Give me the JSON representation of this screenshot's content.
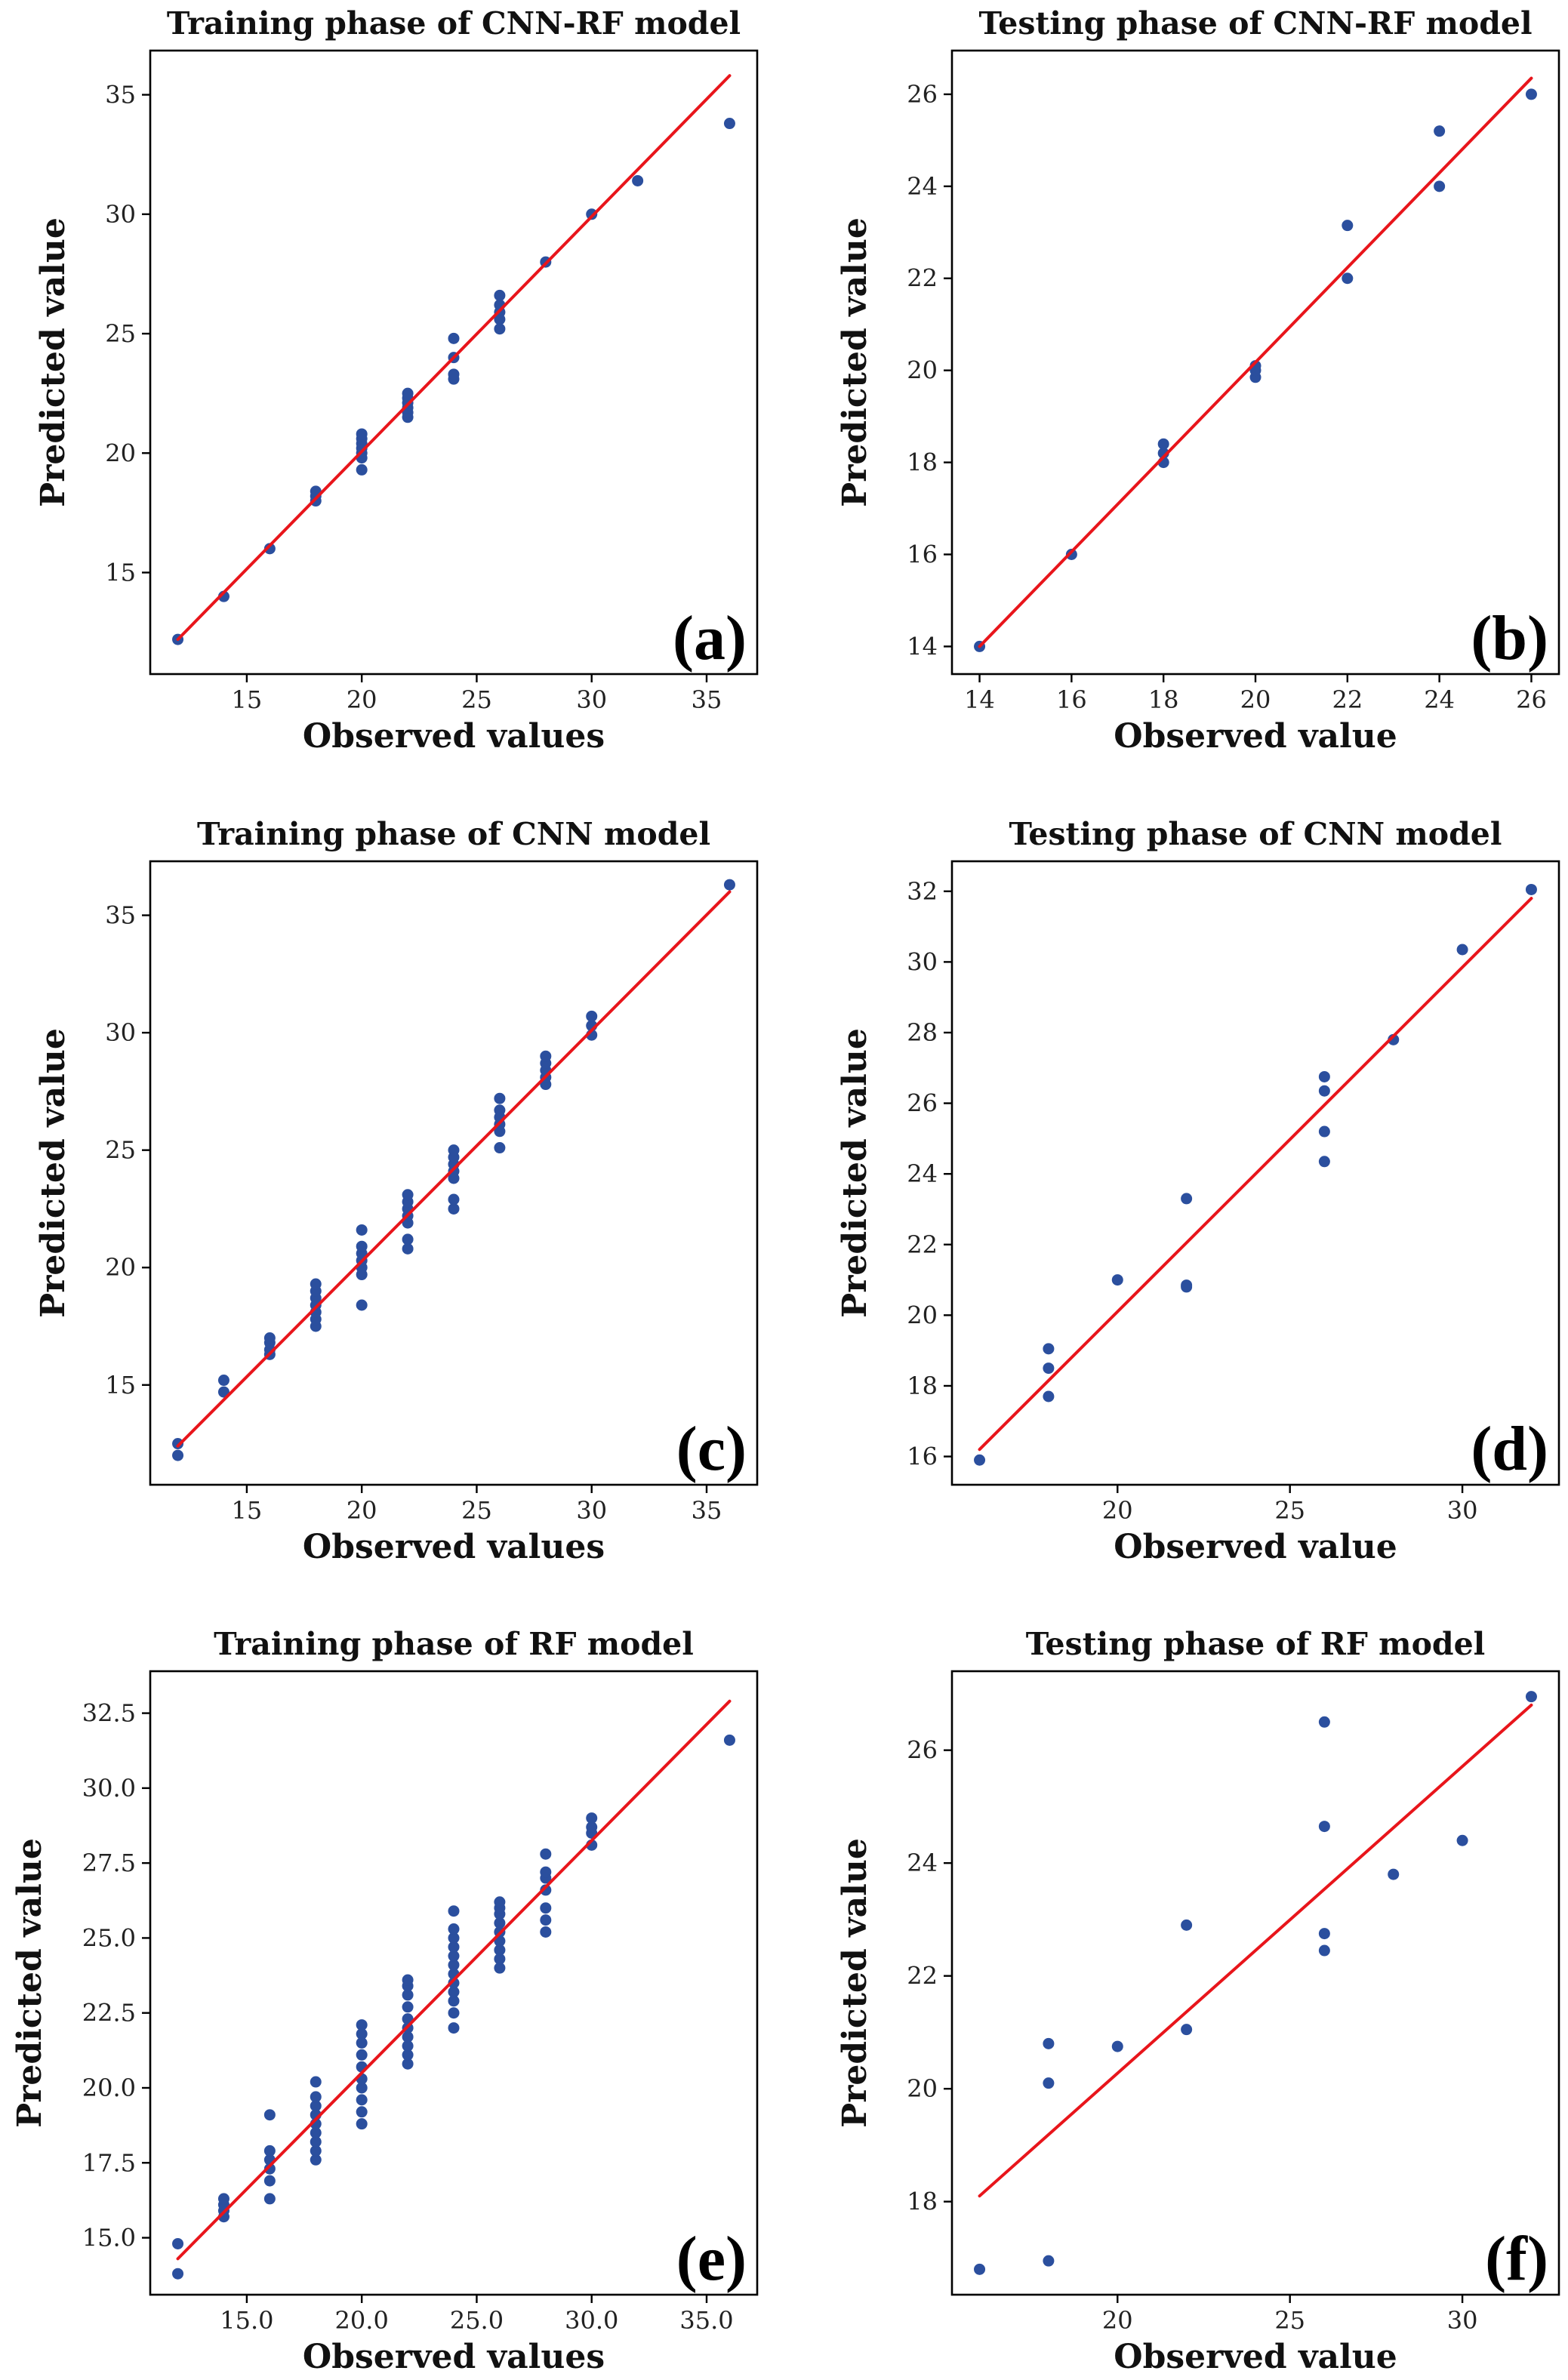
{
  "colors": {
    "points": "#2b4f9e",
    "fit_line": "#e8151b",
    "axes": "#000000"
  },
  "chart_data": [
    {
      "panel": "(a)",
      "type": "scatter",
      "title": "Training phase of CNN-RF model",
      "xlabel": "Observed values",
      "ylabel": "Predicted value",
      "xlim": [
        10.8,
        37.2
      ],
      "ylim": [
        10.75,
        36.85
      ],
      "xticks": [
        15,
        20,
        25,
        30,
        35
      ],
      "yticks": [
        15,
        20,
        25,
        30,
        35
      ],
      "tick_decimals": 0,
      "fit_line": {
        "x": [
          12,
          36
        ],
        "y": [
          12.2,
          35.8
        ]
      },
      "points": [
        [
          12,
          12.2
        ],
        [
          14,
          14.0
        ],
        [
          16,
          16.0
        ],
        [
          18,
          18.0
        ],
        [
          18,
          18.2
        ],
        [
          18,
          18.4
        ],
        [
          20,
          19.3
        ],
        [
          20,
          19.8
        ],
        [
          20,
          20.0
        ],
        [
          20,
          20.2
        ],
        [
          20,
          20.4
        ],
        [
          20,
          20.6
        ],
        [
          20,
          20.8
        ],
        [
          22,
          21.5
        ],
        [
          22,
          21.7
        ],
        [
          22,
          21.9
        ],
        [
          22,
          22.1
        ],
        [
          22,
          22.3
        ],
        [
          22,
          22.5
        ],
        [
          24,
          23.1
        ],
        [
          24,
          23.3
        ],
        [
          24,
          24.0
        ],
        [
          24,
          24.8
        ],
        [
          26,
          25.2
        ],
        [
          26,
          25.6
        ],
        [
          26,
          25.9
        ],
        [
          26,
          26.2
        ],
        [
          26,
          26.6
        ],
        [
          28,
          28.0
        ],
        [
          30,
          30.0
        ],
        [
          32,
          31.4
        ],
        [
          36,
          33.8
        ]
      ]
    },
    {
      "panel": "(b)",
      "type": "scatter",
      "title": "Testing phase of CNN-RF model",
      "xlabel": "Observed value",
      "ylabel": "Predicted value",
      "xlim": [
        13.4,
        26.6
      ],
      "ylim": [
        13.4,
        26.95
      ],
      "xticks": [
        14,
        16,
        18,
        20,
        22,
        24,
        26
      ],
      "yticks": [
        14,
        16,
        18,
        20,
        22,
        24,
        26
      ],
      "tick_decimals": 0,
      "fit_line": {
        "x": [
          14,
          26
        ],
        "y": [
          14.0,
          26.35
        ]
      },
      "points": [
        [
          14,
          14.0
        ],
        [
          16,
          16.0
        ],
        [
          18,
          18.0
        ],
        [
          18,
          18.2
        ],
        [
          18,
          18.4
        ],
        [
          20,
          19.85
        ],
        [
          20,
          20.0
        ],
        [
          20,
          20.1
        ],
        [
          22,
          22.0
        ],
        [
          22,
          23.15
        ],
        [
          24,
          24.0
        ],
        [
          24,
          25.2
        ],
        [
          26,
          26.0
        ]
      ]
    },
    {
      "panel": "(c)",
      "type": "scatter",
      "title": "Training phase of CNN model",
      "xlabel": "Observed values",
      "ylabel": "Predicted value",
      "xlim": [
        10.8,
        37.2
      ],
      "ylim": [
        10.75,
        37.3
      ],
      "xticks": [
        15,
        20,
        25,
        30,
        35
      ],
      "yticks": [
        15,
        20,
        25,
        30,
        35
      ],
      "tick_decimals": 0,
      "fit_line": {
        "x": [
          12,
          36
        ],
        "y": [
          12.4,
          36.0
        ]
      },
      "points": [
        [
          12,
          12.0
        ],
        [
          12,
          12.5
        ],
        [
          14,
          14.7
        ],
        [
          14,
          15.2
        ],
        [
          16,
          16.3
        ],
        [
          16,
          16.5
        ],
        [
          16,
          16.8
        ],
        [
          16,
          17.0
        ],
        [
          18,
          17.5
        ],
        [
          18,
          17.8
        ],
        [
          18,
          18.1
        ],
        [
          18,
          18.4
        ],
        [
          18,
          18.7
        ],
        [
          18,
          19.0
        ],
        [
          18,
          19.3
        ],
        [
          20,
          18.4
        ],
        [
          20,
          19.7
        ],
        [
          20,
          20.0
        ],
        [
          20,
          20.3
        ],
        [
          20,
          20.6
        ],
        [
          20,
          20.9
        ],
        [
          20,
          21.6
        ],
        [
          22,
          20.8
        ],
        [
          22,
          21.2
        ],
        [
          22,
          21.9
        ],
        [
          22,
          22.2
        ],
        [
          22,
          22.5
        ],
        [
          22,
          22.8
        ],
        [
          22,
          23.1
        ],
        [
          24,
          22.5
        ],
        [
          24,
          22.9
        ],
        [
          24,
          23.8
        ],
        [
          24,
          24.1
        ],
        [
          24,
          24.4
        ],
        [
          24,
          24.7
        ],
        [
          24,
          25.0
        ],
        [
          26,
          25.1
        ],
        [
          26,
          25.8
        ],
        [
          26,
          26.1
        ],
        [
          26,
          26.4
        ],
        [
          26,
          26.7
        ],
        [
          26,
          27.2
        ],
        [
          28,
          27.8
        ],
        [
          28,
          28.1
        ],
        [
          28,
          28.4
        ],
        [
          28,
          28.7
        ],
        [
          28,
          29.0
        ],
        [
          30,
          29.9
        ],
        [
          30,
          30.3
        ],
        [
          30,
          30.7
        ],
        [
          36,
          36.3
        ]
      ]
    },
    {
      "panel": "(d)",
      "type": "scatter",
      "title": "Testing phase of CNN model",
      "xlabel": "Observed value",
      "ylabel": "Predicted value",
      "xlim": [
        15.2,
        32.8
      ],
      "ylim": [
        15.2,
        32.85
      ],
      "xticks": [
        20,
        25,
        30
      ],
      "yticks": [
        16,
        18,
        20,
        22,
        24,
        26,
        28,
        30,
        32
      ],
      "tick_decimals": 0,
      "fit_line": {
        "x": [
          16,
          32
        ],
        "y": [
          16.2,
          31.8
        ]
      },
      "points": [
        [
          16,
          15.9
        ],
        [
          18,
          17.7
        ],
        [
          18,
          18.5
        ],
        [
          18,
          19.05
        ],
        [
          20,
          21.0
        ],
        [
          22,
          20.8
        ],
        [
          22,
          20.85
        ],
        [
          22,
          23.3
        ],
        [
          26,
          24.35
        ],
        [
          26,
          25.2
        ],
        [
          26,
          26.35
        ],
        [
          26,
          26.75
        ],
        [
          28,
          27.8
        ],
        [
          30,
          30.35
        ],
        [
          32,
          32.05
        ]
      ]
    },
    {
      "panel": "(e)",
      "type": "scatter",
      "title": "Training phase of RF model",
      "xlabel": "Observed values",
      "ylabel": "Predicted value",
      "xlim": [
        10.8,
        37.2
      ],
      "ylim": [
        13.1,
        33.9
      ],
      "xticks": [
        15,
        20,
        25,
        30,
        35
      ],
      "yticks": [
        15.0,
        17.5,
        20.0,
        22.5,
        25.0,
        27.5,
        30.0,
        32.5
      ],
      "tick_decimals": 1,
      "fit_line": {
        "x": [
          12,
          36
        ],
        "y": [
          14.3,
          32.9
        ]
      },
      "points": [
        [
          12,
          13.8
        ],
        [
          12,
          14.8
        ],
        [
          14,
          15.7
        ],
        [
          14,
          15.9
        ],
        [
          14,
          16.1
        ],
        [
          14,
          16.3
        ],
        [
          16,
          16.3
        ],
        [
          16,
          16.9
        ],
        [
          16,
          17.3
        ],
        [
          16,
          17.6
        ],
        [
          16,
          17.9
        ],
        [
          16,
          19.1
        ],
        [
          18,
          17.6
        ],
        [
          18,
          17.9
        ],
        [
          18,
          18.2
        ],
        [
          18,
          18.5
        ],
        [
          18,
          18.8
        ],
        [
          18,
          19.1
        ],
        [
          18,
          19.4
        ],
        [
          18,
          19.7
        ],
        [
          18,
          20.2
        ],
        [
          20,
          18.8
        ],
        [
          20,
          19.2
        ],
        [
          20,
          19.6
        ],
        [
          20,
          20.0
        ],
        [
          20,
          20.3
        ],
        [
          20,
          20.7
        ],
        [
          20,
          21.1
        ],
        [
          20,
          21.5
        ],
        [
          20,
          21.8
        ],
        [
          20,
          22.1
        ],
        [
          22,
          20.8
        ],
        [
          22,
          21.1
        ],
        [
          22,
          21.4
        ],
        [
          22,
          21.7
        ],
        [
          22,
          22.0
        ],
        [
          22,
          22.3
        ],
        [
          22,
          22.7
        ],
        [
          22,
          23.1
        ],
        [
          22,
          23.4
        ],
        [
          22,
          23.6
        ],
        [
          24,
          22.0
        ],
        [
          24,
          22.5
        ],
        [
          24,
          22.9
        ],
        [
          24,
          23.2
        ],
        [
          24,
          23.5
        ],
        [
          24,
          23.8
        ],
        [
          24,
          24.1
        ],
        [
          24,
          24.4
        ],
        [
          24,
          24.7
        ],
        [
          24,
          25.0
        ],
        [
          24,
          25.3
        ],
        [
          24,
          25.9
        ],
        [
          26,
          24.0
        ],
        [
          26,
          24.3
        ],
        [
          26,
          24.6
        ],
        [
          26,
          24.9
        ],
        [
          26,
          25.2
        ],
        [
          26,
          25.5
        ],
        [
          26,
          25.8
        ],
        [
          26,
          26.0
        ],
        [
          26,
          26.2
        ],
        [
          28,
          25.2
        ],
        [
          28,
          25.6
        ],
        [
          28,
          26.0
        ],
        [
          28,
          26.6
        ],
        [
          28,
          27.0
        ],
        [
          28,
          27.2
        ],
        [
          28,
          27.8
        ],
        [
          30,
          28.1
        ],
        [
          30,
          28.5
        ],
        [
          30,
          28.7
        ],
        [
          30,
          29.0
        ],
        [
          36,
          31.6
        ]
      ]
    },
    {
      "panel": "(f)",
      "type": "scatter",
      "title": "Testing phase of RF model",
      "xlabel": "Observed value",
      "ylabel": "Predicted value",
      "xlim": [
        15.2,
        32.8
      ],
      "ylim": [
        16.35,
        27.4
      ],
      "xticks": [
        20,
        25,
        30
      ],
      "yticks": [
        18,
        20,
        22,
        24,
        26
      ],
      "tick_decimals": 0,
      "fit_line": {
        "x": [
          16,
          32
        ],
        "y": [
          18.1,
          26.8
        ]
      },
      "points": [
        [
          16,
          16.8
        ],
        [
          18,
          16.95
        ],
        [
          18,
          20.1
        ],
        [
          18,
          20.8
        ],
        [
          20,
          20.75
        ],
        [
          22,
          21.05
        ],
        [
          22,
          22.9
        ],
        [
          26,
          22.45
        ],
        [
          26,
          22.75
        ],
        [
          26,
          24.65
        ],
        [
          26,
          26.5
        ],
        [
          28,
          23.8
        ],
        [
          30,
          24.4
        ],
        [
          32,
          26.95
        ]
      ]
    }
  ]
}
